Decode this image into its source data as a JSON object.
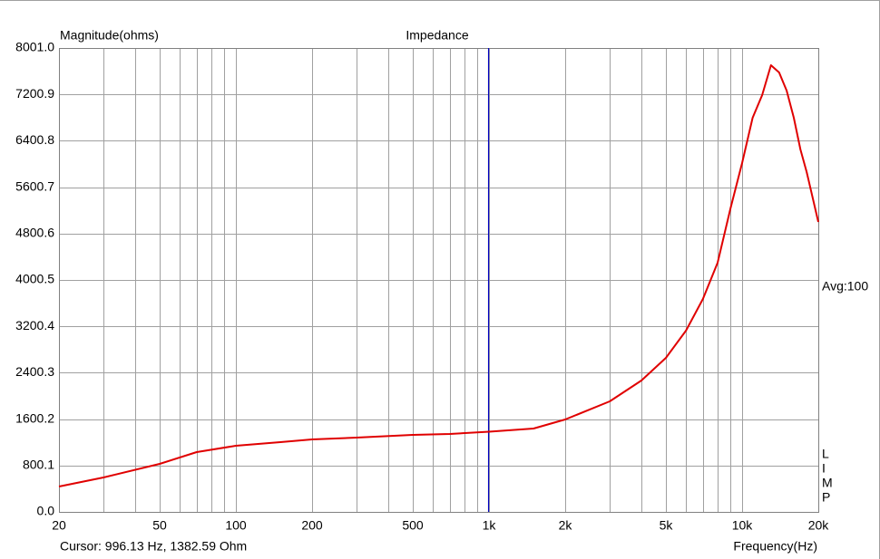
{
  "chart_data": {
    "type": "line",
    "title": "Impedance",
    "y_label": "Magnitude(ohms)",
    "x_label": "Frequency(Hz)",
    "annotation": "Avg:100",
    "side_label": [
      "L",
      "I",
      "M",
      "P"
    ],
    "cursor": {
      "x": 996.13,
      "y": 1382.59,
      "label": "Cursor: 996.13 Hz, 1382.59 Ohm",
      "color": "#0000c0"
    },
    "log_x": true,
    "grid": true,
    "xlim": [
      20,
      20000
    ],
    "ylim": [
      0,
      8001.0
    ],
    "xticks": [
      20,
      50,
      100,
      200,
      500,
      {
        "value": 1000,
        "label": "1k"
      },
      {
        "value": 2000,
        "label": "2k"
      },
      {
        "value": 5000,
        "label": "5k"
      },
      {
        "value": 10000,
        "label": "10k"
      },
      {
        "value": 20000,
        "label": "20k"
      }
    ],
    "x_minor_ticks": [
      30,
      40,
      60,
      70,
      80,
      90,
      300,
      400,
      600,
      700,
      800,
      900,
      3000,
      4000,
      6000,
      7000,
      8000,
      9000
    ],
    "yticks": [
      {
        "value": 0,
        "label": "0.0"
      },
      800.1,
      1600.2,
      2400.3,
      3200.4,
      4000.5,
      4800.6,
      5600.7,
      6400.8,
      7200.9,
      {
        "value": 8001.0,
        "label": "8001.0"
      }
    ],
    "x": [
      20,
      30,
      50,
      70,
      100,
      150,
      200,
      300,
      500,
      700,
      1000,
      1500,
      2000,
      3000,
      4000,
      5000,
      6000,
      7000,
      8000,
      9000,
      10000,
      11000,
      12000,
      13000,
      14000,
      15000,
      16000,
      17000,
      18000,
      20000
    ],
    "values": [
      437,
      594,
      828,
      1031,
      1141,
      1203,
      1250,
      1281,
      1328,
      1344,
      1383,
      1437,
      1594,
      1906,
      2266,
      2656,
      3125,
      3672,
      4297,
      5235,
      6016,
      6798,
      7188,
      7704,
      7579,
      7266,
      6798,
      6251,
      5860,
      5001
    ],
    "color": "#e00000"
  }
}
